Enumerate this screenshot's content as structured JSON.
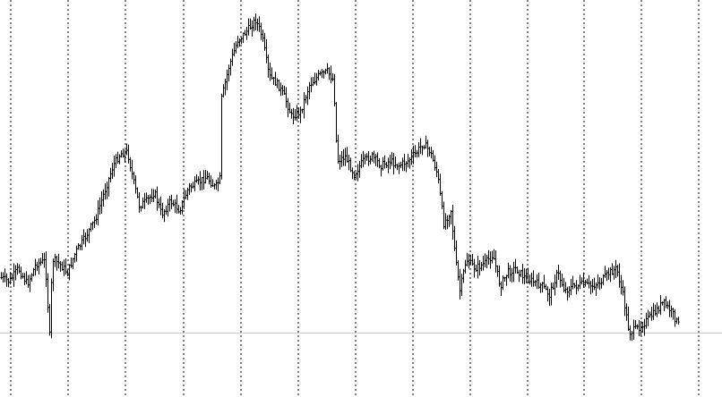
{
  "chart_data": {
    "type": "line",
    "style": "candlestick-bars",
    "grid": {
      "vertical": true,
      "horizontal": false,
      "style": "dashed"
    },
    "ylim": [
      0,
      444
    ],
    "price_line": 372,
    "colors": {
      "background": "#ffffff",
      "bars": "#000000",
      "grid": "#000000",
      "price_line": "#c8c8c8"
    },
    "key_points": [
      [
        0,
        310
      ],
      [
        10,
        315
      ],
      [
        20,
        300
      ],
      [
        30,
        318
      ],
      [
        40,
        295
      ],
      [
        50,
        292
      ],
      [
        55,
        375
      ],
      [
        58,
        290
      ],
      [
        66,
        295
      ],
      [
        75,
        305
      ],
      [
        84,
        282
      ],
      [
        95,
        265
      ],
      [
        106,
        245
      ],
      [
        116,
        215
      ],
      [
        126,
        185
      ],
      [
        134,
        172
      ],
      [
        142,
        170
      ],
      [
        148,
        200
      ],
      [
        155,
        230
      ],
      [
        163,
        225
      ],
      [
        172,
        215
      ],
      [
        180,
        240
      ],
      [
        190,
        225
      ],
      [
        200,
        235
      ],
      [
        210,
        210
      ],
      [
        220,
        205
      ],
      [
        230,
        198
      ],
      [
        240,
        210
      ],
      [
        245,
        200
      ],
      [
        247,
        110
      ],
      [
        255,
        75
      ],
      [
        265,
        45
      ],
      [
        275,
        35
      ],
      [
        285,
        22
      ],
      [
        292,
        40
      ],
      [
        300,
        85
      ],
      [
        310,
        95
      ],
      [
        318,
        110
      ],
      [
        325,
        130
      ],
      [
        335,
        125
      ],
      [
        345,
        95
      ],
      [
        355,
        85
      ],
      [
        365,
        80
      ],
      [
        372,
        90
      ],
      [
        376,
        180
      ],
      [
        385,
        175
      ],
      [
        395,
        195
      ],
      [
        405,
        180
      ],
      [
        415,
        175
      ],
      [
        425,
        185
      ],
      [
        435,
        180
      ],
      [
        445,
        185
      ],
      [
        455,
        180
      ],
      [
        465,
        170
      ],
      [
        472,
        160
      ],
      [
        480,
        170
      ],
      [
        488,
        195
      ],
      [
        495,
        250
      ],
      [
        503,
        235
      ],
      [
        508,
        290
      ],
      [
        513,
        325
      ],
      [
        520,
        290
      ],
      [
        530,
        300
      ],
      [
        540,
        295
      ],
      [
        550,
        285
      ],
      [
        558,
        320
      ],
      [
        566,
        305
      ],
      [
        575,
        300
      ],
      [
        585,
        310
      ],
      [
        595,
        315
      ],
      [
        605,
        320
      ],
      [
        613,
        330
      ],
      [
        622,
        305
      ],
      [
        630,
        325
      ],
      [
        640,
        320
      ],
      [
        650,
        318
      ],
      [
        660,
        320
      ],
      [
        670,
        315
      ],
      [
        680,
        305
      ],
      [
        688,
        300
      ],
      [
        695,
        330
      ],
      [
        702,
        372
      ],
      [
        710,
        368
      ],
      [
        720,
        360
      ],
      [
        730,
        350
      ],
      [
        740,
        338
      ],
      [
        750,
        350
      ],
      [
        758,
        365
      ]
    ],
    "x_grid": [
      12,
      76,
      140,
      205,
      269,
      333,
      397,
      461,
      525,
      589,
      652,
      716,
      780
    ],
    "seed": 7
  }
}
